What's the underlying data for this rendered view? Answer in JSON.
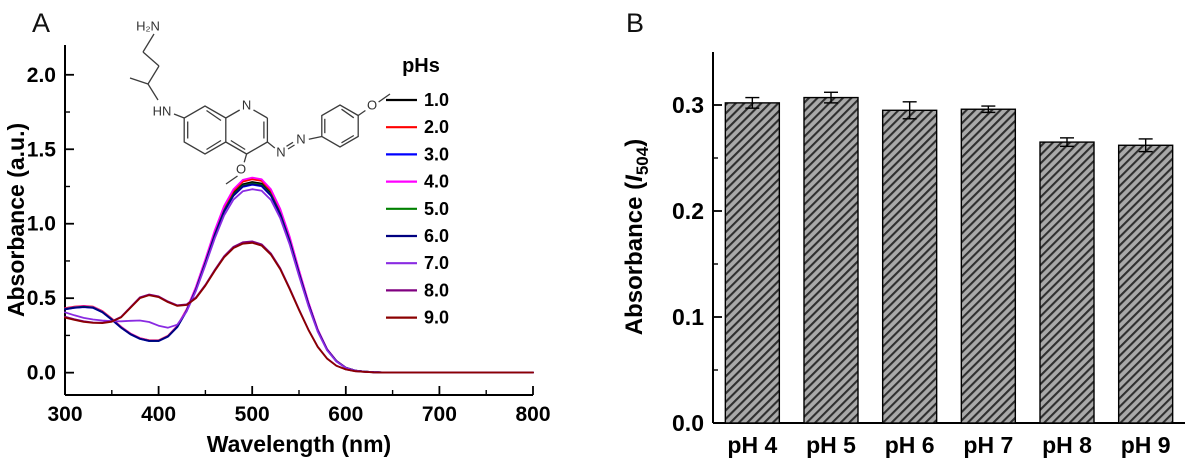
{
  "panels": {
    "a": "A",
    "b": "B"
  },
  "molecule": {
    "amine": "H₂N",
    "nh": "HN",
    "ring_n": "N",
    "azo_n1": "N",
    "azo_n2": "N",
    "methoxy_o1": "O",
    "methoxy_o2": "O"
  },
  "chart_data": [
    {
      "type": "line",
      "panel": "A",
      "xlabel": "Wavelength (nm)",
      "ylabel": "Absorbance (a.u.)",
      "xlim": [
        300,
        800
      ],
      "ylim": [
        -0.15,
        2.2
      ],
      "xticks": [
        300,
        400,
        500,
        600,
        700,
        800
      ],
      "xticks_minor": [
        350,
        450,
        550,
        650,
        750
      ],
      "yticks": [
        0.0,
        0.5,
        1.0,
        1.5,
        2.0
      ],
      "yticks_minor": [
        0.25,
        0.75,
        1.25,
        1.75
      ],
      "legend_title": "pHs",
      "legend_position": "inside-top-right",
      "grid": false,
      "x": [
        300,
        310,
        320,
        330,
        340,
        350,
        360,
        370,
        380,
        390,
        400,
        410,
        420,
        430,
        440,
        450,
        460,
        470,
        480,
        490,
        500,
        510,
        520,
        530,
        540,
        550,
        560,
        570,
        580,
        590,
        600,
        610,
        620,
        630,
        640,
        650,
        700,
        750,
        800
      ],
      "series": [
        {
          "name": "1.0",
          "color": "#000000",
          "values": [
            0.43,
            0.44,
            0.445,
            0.44,
            0.41,
            0.36,
            0.305,
            0.26,
            0.23,
            0.215,
            0.215,
            0.245,
            0.31,
            0.42,
            0.565,
            0.745,
            0.935,
            1.095,
            1.205,
            1.265,
            1.28,
            1.27,
            1.205,
            1.075,
            0.895,
            0.675,
            0.465,
            0.285,
            0.155,
            0.078,
            0.033,
            0.014,
            0.007,
            0.003,
            0.002,
            0.001,
            0.001,
            0.001,
            0.001
          ]
        },
        {
          "name": "2.0",
          "color": "#ff0000",
          "values": [
            0.433,
            0.443,
            0.448,
            0.443,
            0.413,
            0.363,
            0.308,
            0.263,
            0.232,
            0.217,
            0.217,
            0.248,
            0.314,
            0.426,
            0.573,
            0.756,
            0.948,
            1.11,
            1.222,
            1.283,
            1.298,
            1.288,
            1.222,
            1.09,
            0.907,
            0.684,
            0.471,
            0.289,
            0.157,
            0.079,
            0.033,
            0.014,
            0.007,
            0.003,
            0.002,
            0.001,
            0.001,
            0.001,
            0.001
          ]
        },
        {
          "name": "3.0",
          "color": "#0000ff",
          "values": [
            0.425,
            0.435,
            0.44,
            0.435,
            0.405,
            0.355,
            0.301,
            0.257,
            0.227,
            0.212,
            0.212,
            0.242,
            0.306,
            0.415,
            0.558,
            0.735,
            0.922,
            1.08,
            1.188,
            1.247,
            1.262,
            1.252,
            1.188,
            1.06,
            0.882,
            0.665,
            0.458,
            0.281,
            0.153,
            0.077,
            0.032,
            0.014,
            0.007,
            0.003,
            0.002,
            0.001,
            0.001,
            0.001,
            0.001
          ]
        },
        {
          "name": "4.0",
          "color": "#ff00ff",
          "values": [
            0.431,
            0.441,
            0.446,
            0.441,
            0.411,
            0.361,
            0.307,
            0.262,
            0.231,
            0.216,
            0.216,
            0.247,
            0.313,
            0.425,
            0.577,
            0.762,
            0.956,
            1.119,
            1.232,
            1.294,
            1.31,
            1.299,
            1.232,
            1.099,
            0.915,
            0.69,
            0.475,
            0.291,
            0.158,
            0.08,
            0.034,
            0.014,
            0.007,
            0.003,
            0.002,
            0.001,
            0.001,
            0.001,
            0.001
          ]
        },
        {
          "name": "5.0",
          "color": "#008000",
          "values": [
            0.428,
            0.438,
            0.443,
            0.438,
            0.408,
            0.358,
            0.303,
            0.259,
            0.228,
            0.214,
            0.214,
            0.244,
            0.308,
            0.418,
            0.561,
            0.74,
            0.928,
            1.088,
            1.197,
            1.256,
            1.271,
            1.261,
            1.197,
            1.067,
            0.888,
            0.67,
            0.462,
            0.283,
            0.154,
            0.078,
            0.033,
            0.014,
            0.007,
            0.003,
            0.002,
            0.001,
            0.001,
            0.001,
            0.001
          ]
        },
        {
          "name": "6.0",
          "color": "#000080",
          "values": [
            0.426,
            0.436,
            0.441,
            0.436,
            0.406,
            0.356,
            0.302,
            0.258,
            0.228,
            0.213,
            0.213,
            0.243,
            0.307,
            0.416,
            0.559,
            0.737,
            0.924,
            1.083,
            1.191,
            1.251,
            1.266,
            1.256,
            1.191,
            1.063,
            0.884,
            0.667,
            0.46,
            0.282,
            0.154,
            0.077,
            0.033,
            0.014,
            0.007,
            0.003,
            0.002,
            0.001,
            0.001,
            0.001,
            0.001
          ]
        },
        {
          "name": "7.0",
          "color": "#8a2be2",
          "values": [
            0.405,
            0.385,
            0.368,
            0.357,
            0.35,
            0.346,
            0.345,
            0.348,
            0.35,
            0.34,
            0.315,
            0.302,
            0.322,
            0.412,
            0.55,
            0.722,
            0.902,
            1.056,
            1.162,
            1.218,
            1.232,
            1.222,
            1.16,
            1.036,
            0.862,
            0.65,
            0.448,
            0.276,
            0.15,
            0.075,
            0.032,
            0.013,
            0.006,
            0.003,
            0.002,
            0.001,
            0.001,
            0.001,
            0.001
          ]
        },
        {
          "name": "8.0",
          "color": "#800080",
          "values": [
            0.375,
            0.358,
            0.345,
            0.337,
            0.336,
            0.345,
            0.375,
            0.44,
            0.505,
            0.525,
            0.512,
            0.478,
            0.452,
            0.458,
            0.505,
            0.59,
            0.69,
            0.782,
            0.845,
            0.875,
            0.881,
            0.862,
            0.8,
            0.7,
            0.568,
            0.425,
            0.29,
            0.175,
            0.095,
            0.047,
            0.022,
            0.01,
            0.005,
            0.002,
            0.001,
            0.001,
            0.001,
            0.001,
            0.001
          ]
        },
        {
          "name": "9.0",
          "color": "#8b0000",
          "values": [
            0.37,
            0.354,
            0.341,
            0.334,
            0.333,
            0.342,
            0.372,
            0.436,
            0.5,
            0.52,
            0.507,
            0.473,
            0.448,
            0.454,
            0.5,
            0.584,
            0.683,
            0.774,
            0.836,
            0.866,
            0.872,
            0.853,
            0.792,
            0.693,
            0.562,
            0.421,
            0.287,
            0.173,
            0.094,
            0.046,
            0.022,
            0.01,
            0.005,
            0.002,
            0.001,
            0.001,
            0.001,
            0.001,
            0.001
          ]
        }
      ]
    },
    {
      "type": "bar",
      "panel": "B",
      "ylabel_prefix": "Absorbance (",
      "ylabel_italic": "I",
      "ylabel_sub": "504",
      "ylabel_suffix": ")",
      "ylim": [
        0,
        0.35
      ],
      "yticks": [
        0.0,
        0.1,
        0.2,
        0.3
      ],
      "yticks_minor": [
        0.05,
        0.15,
        0.25
      ],
      "categories": [
        "pH 4",
        "pH 5",
        "pH 6",
        "pH 7",
        "pH 8",
        "pH 9"
      ],
      "values": [
        0.302,
        0.307,
        0.295,
        0.296,
        0.265,
        0.262
      ],
      "errors": [
        0.005,
        0.005,
        0.008,
        0.003,
        0.004,
        0.006
      ],
      "grid": false,
      "bar_fill": "#a9a9a9",
      "hatch_color": "#2f2f2f",
      "bar_edge": "#000000"
    }
  ]
}
